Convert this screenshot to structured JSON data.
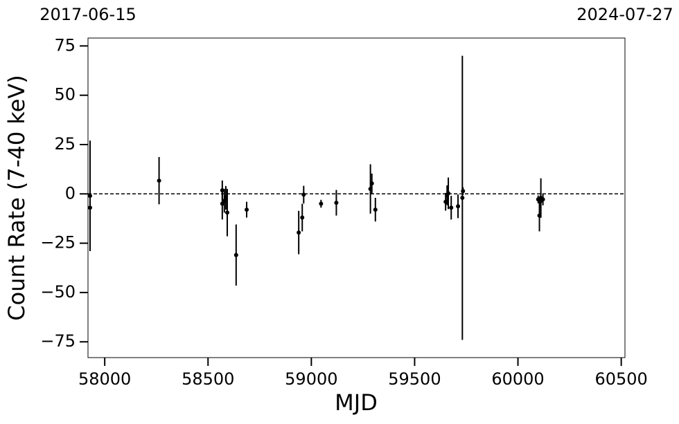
{
  "chart_data": {
    "type": "errorbar",
    "x_label": "MJD",
    "y_label": "Count Rate (7-40 keV)",
    "x": [
      57929,
      57929,
      58263,
      58569,
      58569,
      58579,
      58586,
      58593,
      58636,
      58687,
      58939,
      58956,
      58963,
      59047,
      59121,
      59286,
      59293,
      59310,
      59650,
      59657,
      59663,
      59677,
      59710,
      59731,
      59734,
      60098,
      60104,
      60108,
      60111,
      60121
    ],
    "values": [
      -1,
      -7,
      6.7,
      -5,
      1.8,
      -3.5,
      -2,
      -9.5,
      -31,
      -8,
      -19.6,
      -12,
      -0.4,
      -5,
      -4.5,
      2.5,
      5.3,
      -8,
      -4,
      -0.7,
      0.3,
      -7,
      -6.3,
      -2,
      1.4,
      -2.8,
      -11,
      -3.9,
      -2.1,
      -2.8
    ],
    "errors": [
      28,
      3,
      12,
      8,
      5,
      6,
      6,
      12,
      15.5,
      4,
      11,
      7,
      4.5,
      2,
      6.5,
      12.5,
      5,
      6,
      4.5,
      5,
      8,
      6,
      6,
      72,
      2,
      2,
      8,
      3,
      10,
      3
    ],
    "color": "#000000",
    "hline": 0,
    "xlim": [
      57919,
      60518
    ],
    "ylim": [
      -83,
      79
    ],
    "xticks": [
      58000,
      58500,
      59000,
      59500,
      60000,
      60500
    ],
    "x2ticks": [
      {
        "value": 57919,
        "label": "2017-06-15"
      },
      {
        "value": 60518,
        "label": "2024-07-27"
      }
    ],
    "yticks": [
      {
        "value": -75,
        "label": "−75"
      },
      {
        "value": -50,
        "label": "−50"
      },
      {
        "value": -25,
        "label": "−25"
      },
      0,
      25,
      50,
      75
    ]
  }
}
